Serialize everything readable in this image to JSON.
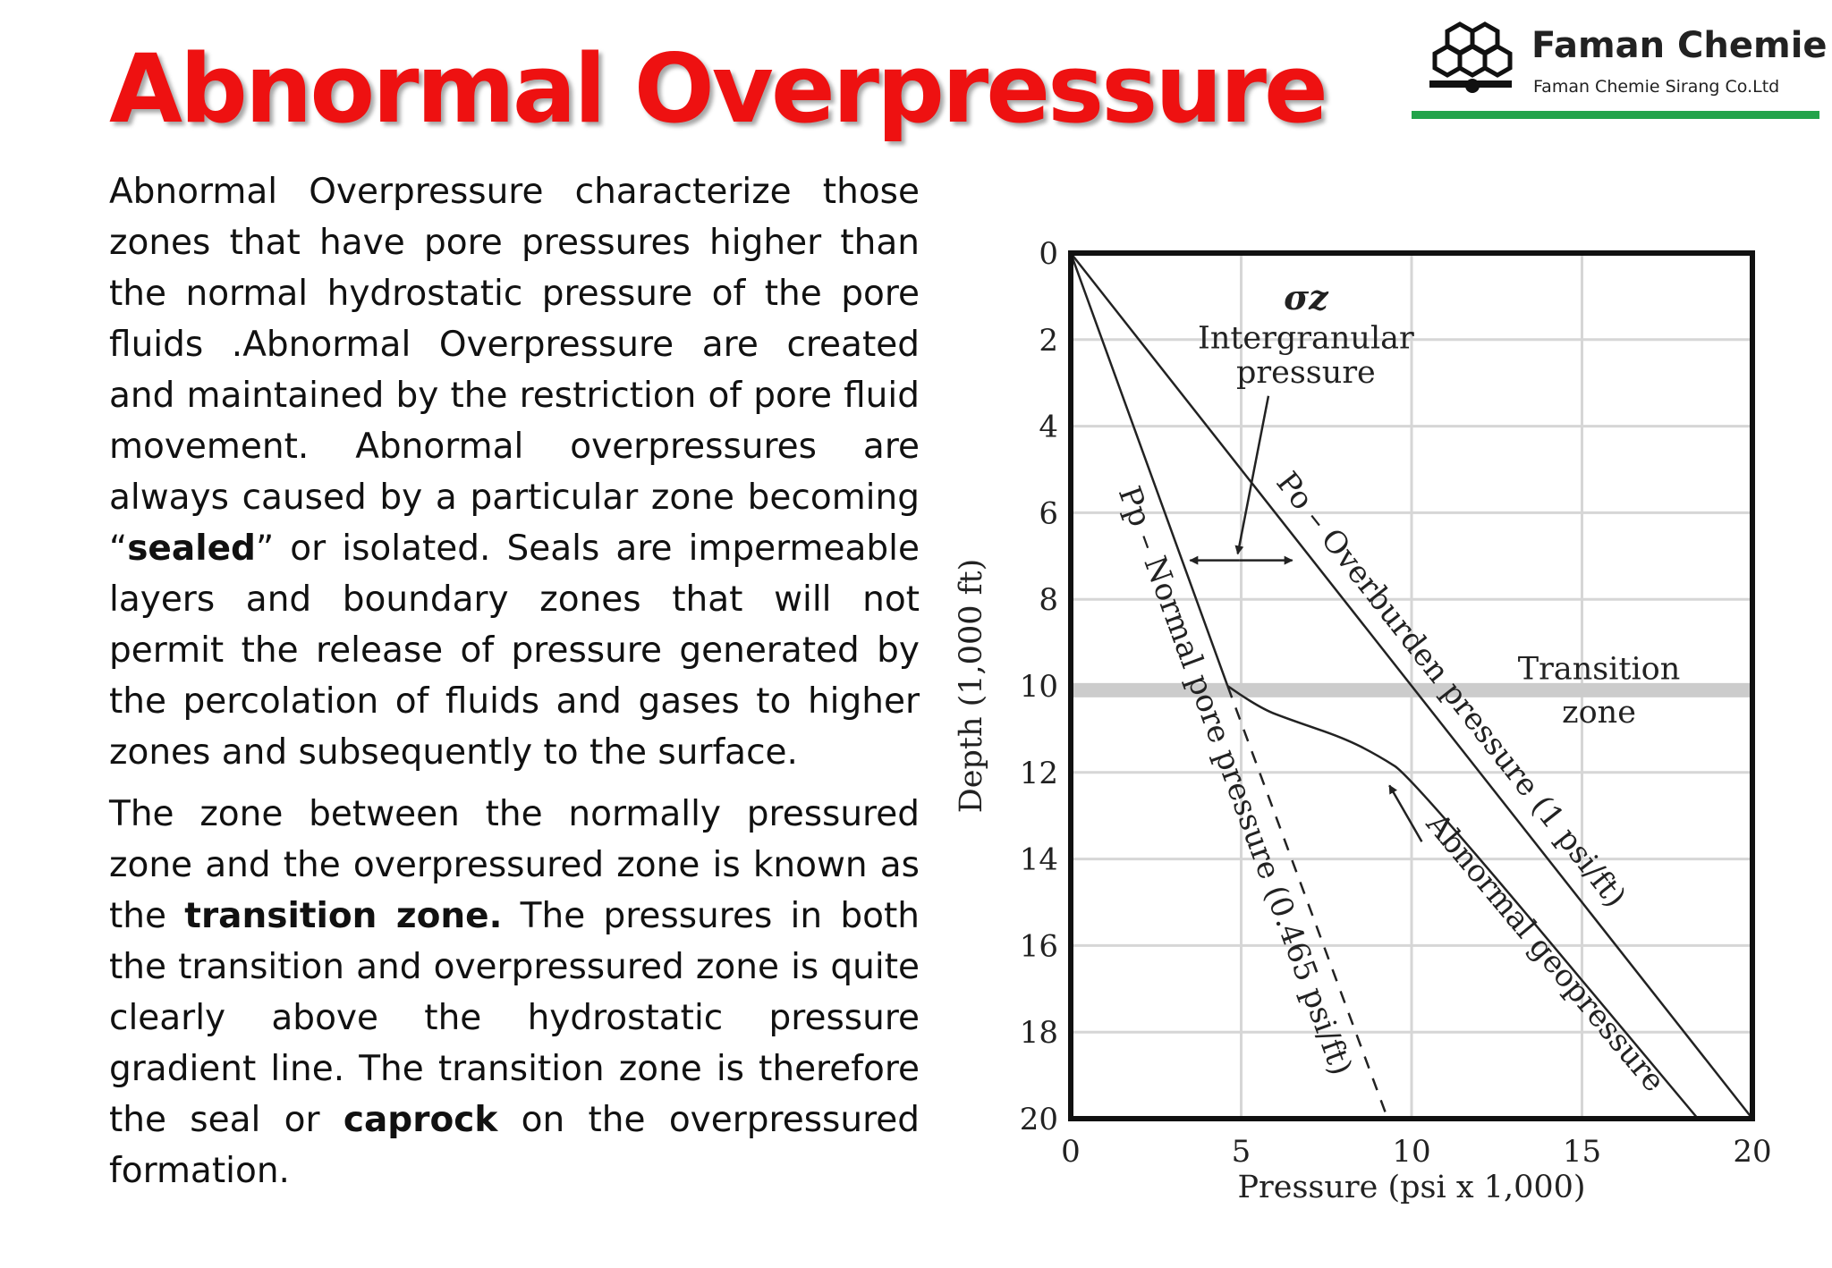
{
  "title": "Abnormal Overpressure",
  "logo": {
    "name": "Faman Chemie",
    "subtitle": "Faman Chemie Sirang Co.Ltd",
    "bar_color": "#22a34a"
  },
  "paragraph1": {
    "part1": "Abnormal Overpressure characterize those zones that have pore pressures higher than the normal hydrostatic pressure of the pore fluids .Abnormal Overpressure are created and maintained by the restriction of pore fluid movement. Abnormal overpressures are always caused by a particular zone becoming “",
    "bold1": "sealed",
    "part2": "” or isolated. Seals are impermeable layers and boundary zones that will not permit the release of pressure generated by the percolation of fluids and gases to higher zones and subsequently to the surface."
  },
  "paragraph2": {
    "part1": "The zone between the normally pressured zone and the overpressured zone is known as the ",
    "bold1": "transition zone.",
    "part2": " The pressures in both the transition and overpressured zone is quite clearly above the hydrostatic pressure gradient line. The transition zone is therefore the seal or ",
    "bold2": "caprock",
    "part3": " on the overpressured formation."
  },
  "chart_data": {
    "type": "line",
    "xlabel": "Pressure (psi x 1,000)",
    "ylabel": "Depth (1,000 ft)",
    "xlim": [
      0,
      20
    ],
    "ylim": [
      0,
      20
    ],
    "y_inverted": true,
    "grid": true,
    "x_ticks": [
      "0",
      "5",
      "10",
      "15",
      "20"
    ],
    "y_ticks": [
      "0",
      "2",
      "4",
      "6",
      "8",
      "10",
      "12",
      "14",
      "16",
      "18",
      "20"
    ],
    "series": [
      {
        "name": "Po – Overburden pressure (1 psi/ft)",
        "x": [
          0,
          20
        ],
        "y": [
          0,
          20
        ]
      },
      {
        "name": "Pp – Normal pore pressure (0.465 psi/ft)",
        "x": [
          0,
          4.6,
          9.3
        ],
        "y": [
          0,
          10,
          20
        ],
        "dashed_below_y": 10
      },
      {
        "name": "Abnormal geopressure",
        "x": [
          4.6,
          5.5,
          6.5,
          8,
          9,
          10,
          18.4
        ],
        "y": [
          10,
          10.5,
          10.8,
          11.2,
          11.6,
          12.1,
          20
        ]
      }
    ],
    "annotations": {
      "sigma": "σz",
      "intergranular_line1": "Intergranular",
      "intergranular_line2": "pressure",
      "transition_line1": "Transition",
      "transition_line2": "zone",
      "transition_zone_depth": 10.1
    }
  }
}
